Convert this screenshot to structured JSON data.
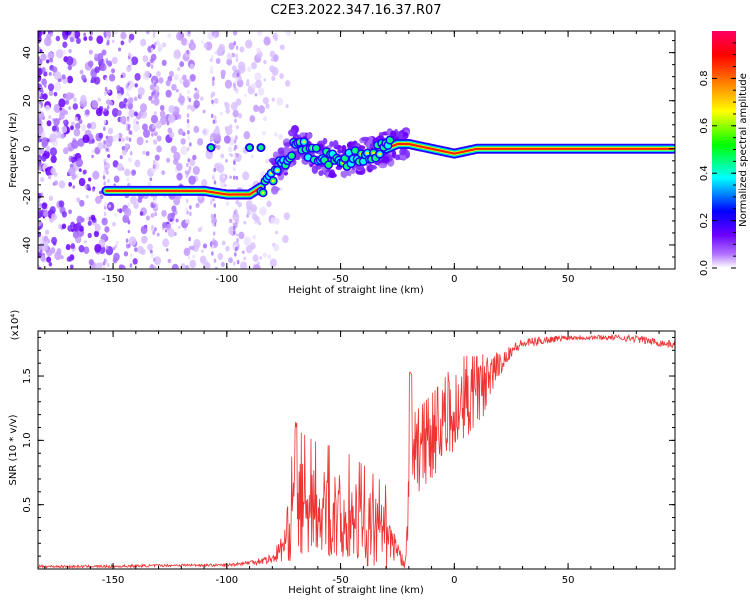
{
  "title": "C2E3.2022.347.16.37.R07",
  "chart_data": [
    {
      "type": "heatmap",
      "xlabel": "Height of straight line (km)",
      "ylabel": "Frequency (Hz)",
      "xlim": [
        -183,
        97
      ],
      "ylim": [
        -50,
        49
      ],
      "x_ticks": [
        -150,
        -100,
        -50,
        0,
        50
      ],
      "y_ticks": [
        -40,
        -20,
        0,
        20,
        40
      ],
      "colorbar": {
        "label": "Normalized spectral amplitude",
        "range": [
          0,
          1
        ],
        "ticks": [
          "0.0",
          "0.2",
          "0.4",
          "0.6",
          "0.8"
        ],
        "colors": [
          "#ffffff",
          "#6a00ff",
          "#0000ff",
          "#00ffff",
          "#00ff00",
          "#ffff00",
          "#ff8000",
          "#ff0000",
          "#ff0066"
        ]
      },
      "ridge": [
        {
          "x": -153,
          "f": -17.5
        },
        {
          "x": -140,
          "f": -17.5
        },
        {
          "x": -125,
          "f": -17.5
        },
        {
          "x": -110,
          "f": -17.5
        },
        {
          "x": -100,
          "f": -19
        },
        {
          "x": -90,
          "f": -19
        },
        {
          "x": -85,
          "f": -16
        },
        {
          "x": -80,
          "f": -12
        },
        {
          "x": -70,
          "f": 2
        },
        {
          "x": -60,
          "f": -3
        },
        {
          "x": -50,
          "f": -5
        },
        {
          "x": -40,
          "f": -3
        },
        {
          "x": -30,
          "f": 0
        },
        {
          "x": -25,
          "f": 2
        },
        {
          "x": -20,
          "f": 2
        },
        {
          "x": -10,
          "f": 0
        },
        {
          "x": 0,
          "f": -2
        },
        {
          "x": 5,
          "f": -1
        },
        {
          "x": 10,
          "f": 0
        },
        {
          "x": 95,
          "f": 0
        }
      ]
    },
    {
      "type": "line",
      "xlabel": "Height of straight line (km)",
      "ylabel": "SNR (10 * v/v)",
      "yscale_note": "(x10⁴)",
      "xlim": [
        -183,
        97
      ],
      "ylim": [
        0,
        1.85
      ],
      "x_ticks": [
        -150,
        -100,
        -50,
        0,
        50
      ],
      "y_ticks": [
        0.5,
        1.0,
        1.5
      ],
      "y_tick_labels": [
        "0.5",
        "1.0",
        "1.5"
      ],
      "color": "#ee3333",
      "x": [
        -183,
        -150,
        -120,
        -100,
        -90,
        -80,
        -75,
        -70,
        -60,
        -50,
        -40,
        -30,
        -25,
        -22,
        -20,
        -18,
        -15,
        -10,
        -5,
        0,
        5,
        10,
        15,
        20,
        25,
        30,
        40,
        50,
        60,
        70,
        80,
        90,
        97
      ],
      "y": [
        0.02,
        0.02,
        0.03,
        0.03,
        0.05,
        0.08,
        0.18,
        0.45,
        0.42,
        0.38,
        0.33,
        0.25,
        0.1,
        0.05,
        0.5,
        0.85,
        0.9,
        1.0,
        1.1,
        1.2,
        1.3,
        1.35,
        1.45,
        1.6,
        1.7,
        1.75,
        1.78,
        1.8,
        1.8,
        1.8,
        1.79,
        1.76,
        1.74
      ],
      "noise_amplitude": [
        0.01,
        0.01,
        0.01,
        0.01,
        0.02,
        0.04,
        0.12,
        0.4,
        0.35,
        0.35,
        0.3,
        0.25,
        0.1,
        0.05,
        0.3,
        0.3,
        0.3,
        0.3,
        0.3,
        0.35,
        0.3,
        0.25,
        0.2,
        0.1,
        0.05,
        0.04,
        0.03,
        0.02,
        0.02,
        0.02,
        0.03,
        0.03,
        0.03
      ]
    }
  ]
}
